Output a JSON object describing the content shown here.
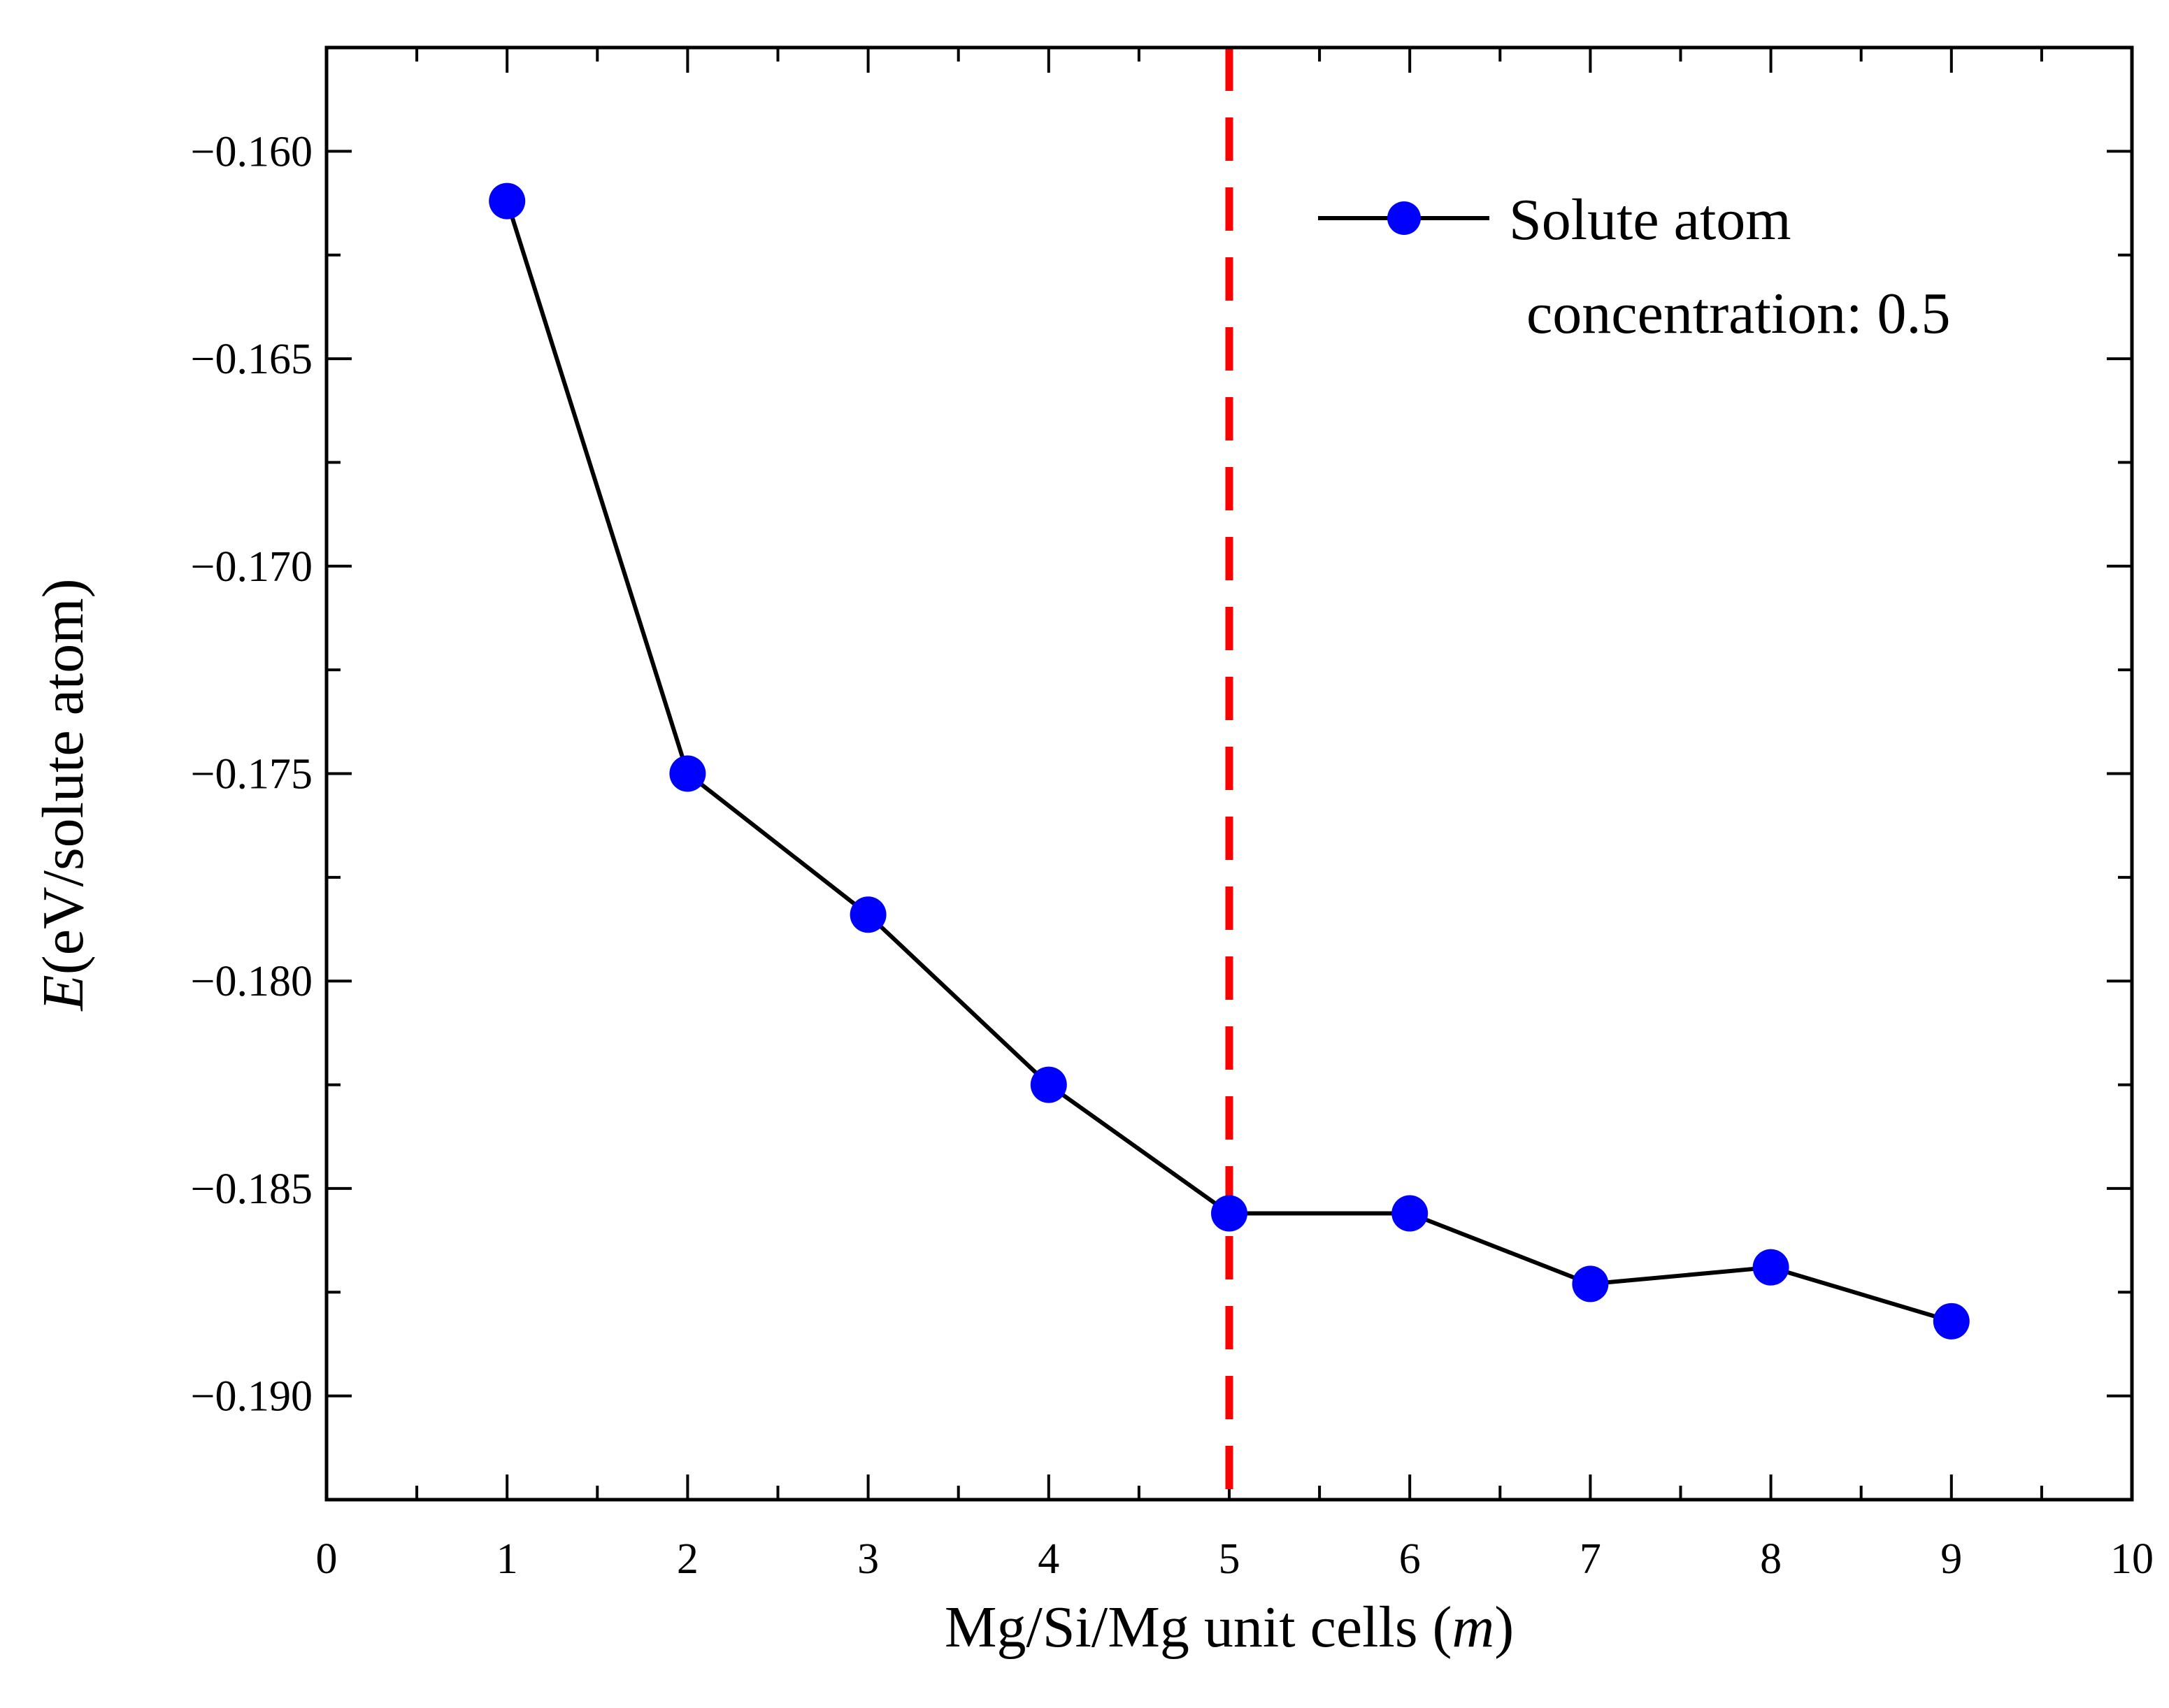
{
  "chart_data": {
    "type": "line",
    "title": "",
    "xlabel_main": "Mg/Si/Mg unit cells (",
    "xlabel_var": "m",
    "xlabel_close": ")",
    "ylabel_var": "E",
    "ylabel_rest": "(eV/solute atom)",
    "xlim": [
      0,
      10
    ],
    "ylim": [
      -0.1925,
      -0.1575
    ],
    "x_ticks": [
      0,
      1,
      2,
      3,
      4,
      5,
      6,
      7,
      8,
      9,
      10
    ],
    "x_tick_labels": [
      "0",
      "1",
      "2",
      "3",
      "4",
      "5",
      "6",
      "7",
      "8",
      "9",
      "10"
    ],
    "y_ticks": [
      -0.16,
      -0.165,
      -0.17,
      -0.175,
      -0.18,
      -0.185,
      -0.19
    ],
    "y_tick_labels": [
      "−0.160",
      "−0.165",
      "−0.170",
      "−0.175",
      "−0.180",
      "−0.185",
      "−0.190"
    ],
    "series": [
      {
        "name_line1": "Solute atom",
        "name_line2": "concentration: 0.5",
        "x": [
          1,
          2,
          3,
          4,
          5,
          6,
          7,
          8,
          9
        ],
        "y": [
          -0.1612,
          -0.175,
          -0.1784,
          -0.1825,
          -0.1856,
          -0.1856,
          -0.1873,
          -0.1869,
          -0.1882
        ],
        "line_color": "#000000",
        "marker_color": "#0000ff"
      }
    ],
    "vline": {
      "x": 5,
      "color": "#ff0000",
      "style": "dashed"
    },
    "legend_position": "top-right"
  }
}
